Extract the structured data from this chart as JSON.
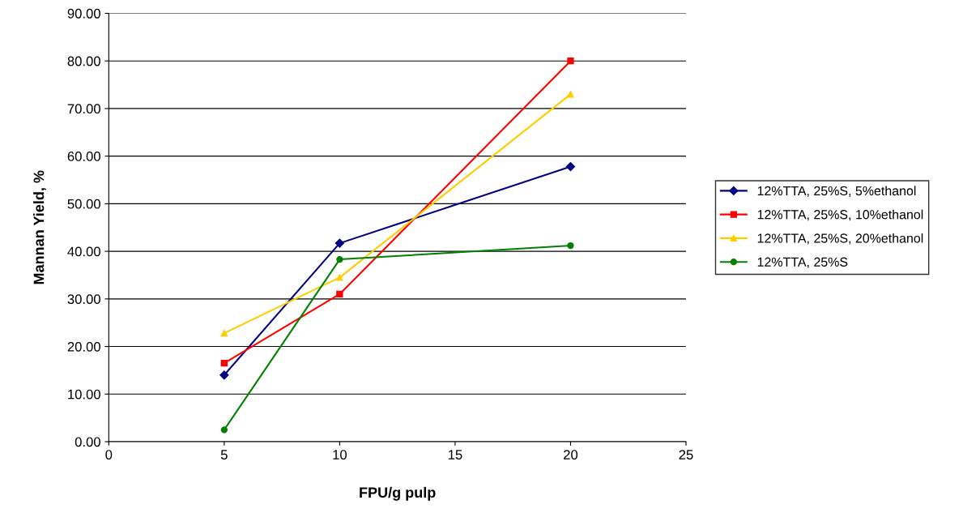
{
  "chart_data": {
    "type": "line",
    "xlabel": "FPU/g pulp",
    "ylabel": "Mannan Yield, %",
    "x": [
      5,
      10,
      20
    ],
    "series": [
      {
        "name": "12%TTA, 25%S, 5%ethanol",
        "color": "#000080",
        "values": [
          14.0,
          41.7,
          57.8
        ],
        "marker": "diamond"
      },
      {
        "name": "12%TTA, 25%S, 10%ethanol",
        "color": "#ff0000",
        "values": [
          16.5,
          31.0,
          80.0
        ],
        "marker": "square"
      },
      {
        "name": "12%TTA, 25%S, 20%ethanol",
        "color": "#ffcc00",
        "values": [
          22.8,
          34.5,
          73.0
        ],
        "marker": "triangle"
      },
      {
        "name": "12%TTA, 25%S",
        "color": "#008000",
        "values": [
          2.5,
          38.3,
          41.2
        ],
        "marker": "circle"
      }
    ],
    "xlim": [
      0,
      25
    ],
    "xticks": [
      0,
      5,
      10,
      15,
      20,
      25
    ],
    "ylim": [
      0,
      90
    ],
    "yticks": [
      {
        "value": 0,
        "label": "0.00"
      },
      {
        "value": 10,
        "label": "10.00"
      },
      {
        "value": 20,
        "label": "20.00"
      },
      {
        "value": 30,
        "label": "30.00"
      },
      {
        "value": 40,
        "label": "40.00"
      },
      {
        "value": 50,
        "label": "50.00"
      },
      {
        "value": 60,
        "label": "60.00"
      },
      {
        "value": 70,
        "label": "70.00"
      },
      {
        "value": 80,
        "label": "80.00"
      },
      {
        "value": 90,
        "label": "90.00"
      }
    ],
    "grid": "y",
    "legend": "right",
    "line_style": "solid"
  }
}
